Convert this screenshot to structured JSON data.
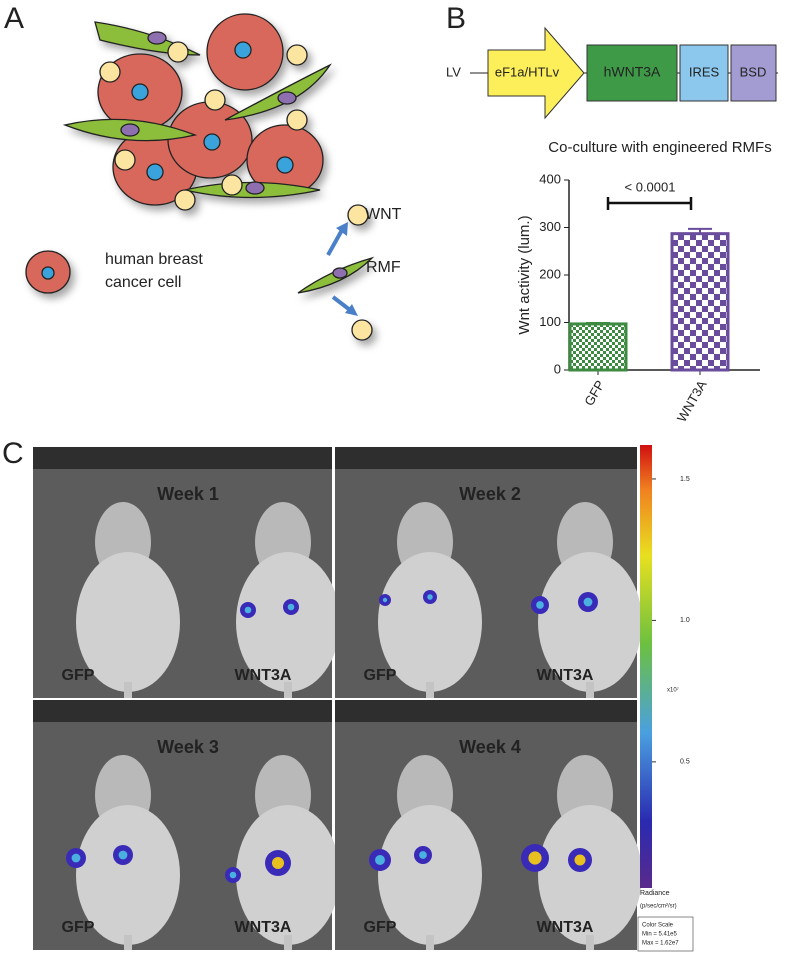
{
  "panels": {
    "a": {
      "letter": "A",
      "wnt": "WNT",
      "rmf": "RMF",
      "cancer_cell": [
        "human breast",
        "cancer cell"
      ]
    },
    "b": {
      "letter": "B",
      "vector": "LV",
      "promoter": "eF1a/HTLv",
      "gene": "hWNT3A",
      "ires": "IRES",
      "marker": "BSD"
    },
    "c": {
      "letter": "C",
      "tiles": [
        {
          "week": "Week 1",
          "left": "GFP",
          "right": "WNT3A"
        },
        {
          "week": "Week 2",
          "left": "GFP",
          "right": "WNT3A"
        },
        {
          "week": "Week 3",
          "left": "GFP",
          "right": "WNT3A"
        },
        {
          "week": "Week 4",
          "left": "GFP",
          "right": "WNT3A"
        }
      ],
      "colorbar": {
        "lim": [
          0.0541,
          1.62
        ],
        "ticks": [
          {
            "value": 0.5,
            "label": "0.5"
          },
          {
            "value": 1.0,
            "label": "1.0"
          },
          {
            "value": 1.5,
            "label": "1.5"
          }
        ],
        "unit": "x10⁷",
        "title": "Radiance",
        "units": "(p/sec/cm²/sr)",
        "legend": [
          "Color Scale",
          "Min = 5.41e5",
          "Max = 1.62e7"
        ]
      }
    }
  },
  "chart_data": {
    "type": "bar",
    "title": "Co-culture with engineered RMFs",
    "ylabel": "Wnt activity (lum.)",
    "categories": [
      "GFP",
      "WNT3A"
    ],
    "values": [
      97,
      287
    ],
    "errors": [
      2,
      10
    ],
    "colors": [
      "#3d8b40",
      "#6a4c9c"
    ],
    "ylim": [
      0,
      400
    ],
    "yticks": [
      0,
      100,
      200,
      300,
      400
    ],
    "annotation": "< 0.0001"
  }
}
